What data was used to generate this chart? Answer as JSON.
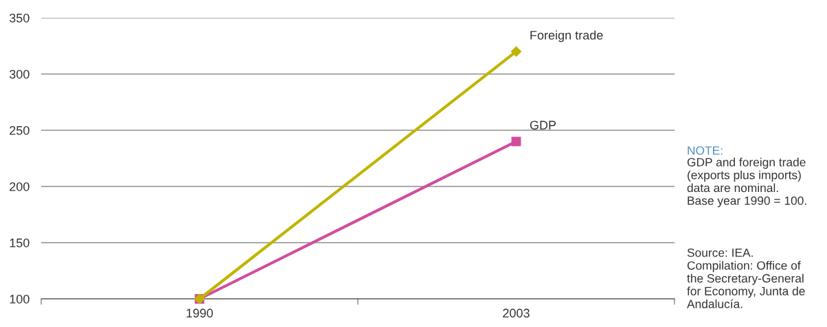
{
  "chart_data": {
    "type": "line",
    "categories": [
      "1990",
      "2003"
    ],
    "series": [
      {
        "name": "Foreign trade",
        "color": "#c0b400",
        "values": [
          100,
          320
        ],
        "marker": "diamond"
      },
      {
        "name": "GDP",
        "color": "#d24c9e",
        "values": [
          100,
          240
        ],
        "marker": "square"
      }
    ],
    "ylim": [
      100,
      350
    ],
    "yticks": [
      100,
      150,
      200,
      250,
      300,
      350
    ],
    "grid": "y",
    "legend": false,
    "annotations": [
      "NOTE:",
      "GDP and foreign trade\n(exports plus imports)\ndata are nominal.\nBase year 1990 = 100.",
      "Source: IEA.\nCompilation: Office of\nthe Secretary-General\nfor Economy, Junta de\nAndalucía."
    ]
  }
}
